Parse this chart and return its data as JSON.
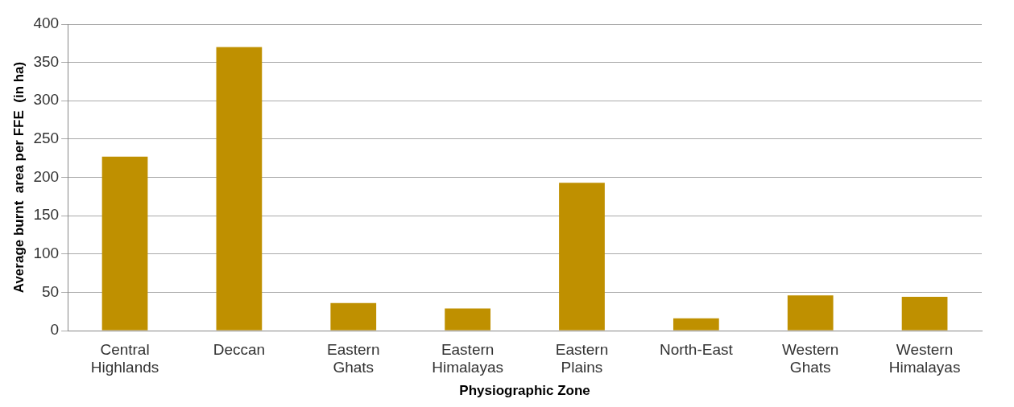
{
  "chart_data": {
    "type": "bar",
    "xlabel": "Physiographic Zone",
    "ylabel": "Average burnt  area per FFE  (in ha)",
    "categories": [
      "Central Highlands",
      "Deccan",
      "Eastern Ghats",
      "Eastern Himalayas",
      "Eastern Plains",
      "North-East",
      "Western Ghats",
      "Western Himalayas"
    ],
    "values": [
      227,
      370,
      36,
      29,
      193,
      16,
      46,
      44
    ],
    "color": "#bf9000",
    "ylim": [
      0,
      400
    ],
    "yticks": [
      0,
      50,
      100,
      150,
      200,
      250,
      300,
      350,
      400
    ],
    "grid": "y",
    "legend": false
  }
}
